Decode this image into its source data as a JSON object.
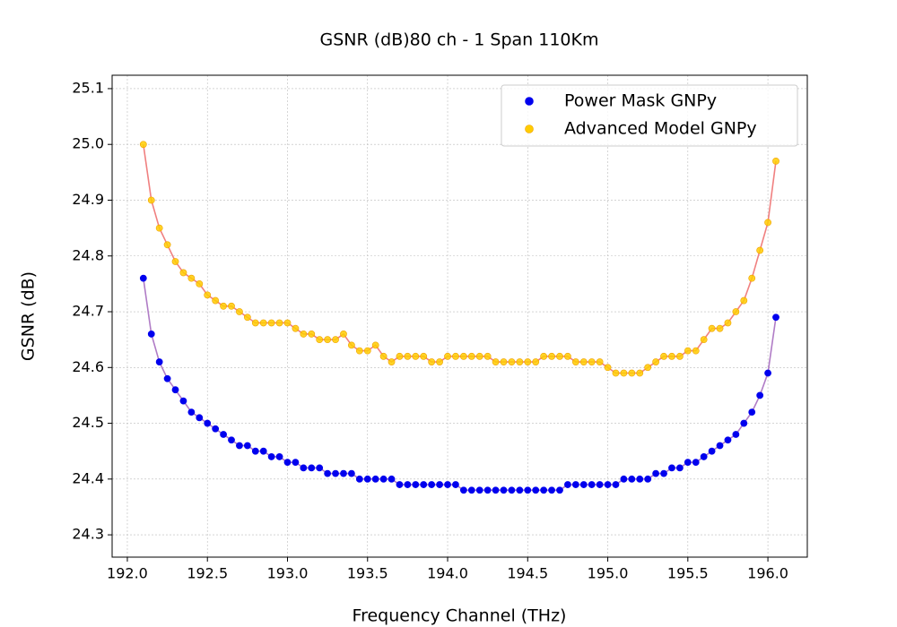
{
  "chart_data": {
    "type": "scatter",
    "title": "GSNR (dB)80 ch - 1 Span 110Km",
    "x_label": "Frequency Channel (THz)",
    "y_label": "GSNR (dB)",
    "x": [
      192.1,
      192.15,
      192.2,
      192.25,
      192.3,
      192.35,
      192.4,
      192.45,
      192.5,
      192.55,
      192.6,
      192.65,
      192.7,
      192.75,
      192.8,
      192.85,
      192.9,
      192.95,
      193.0,
      193.05,
      193.1,
      193.15,
      193.2,
      193.25,
      193.3,
      193.35,
      193.4,
      193.45,
      193.5,
      193.55,
      193.6,
      193.65,
      193.7,
      193.75,
      193.8,
      193.85,
      193.9,
      193.95,
      194.0,
      194.05,
      194.1,
      194.15,
      194.2,
      194.25,
      194.3,
      194.35,
      194.4,
      194.45,
      194.5,
      194.55,
      194.6,
      194.65,
      194.7,
      194.75,
      194.8,
      194.85,
      194.9,
      194.95,
      195.0,
      195.05,
      195.1,
      195.15,
      195.2,
      195.25,
      195.3,
      195.35,
      195.4,
      195.45,
      195.5,
      195.55,
      195.6,
      195.65,
      195.7,
      195.75,
      195.8,
      195.85,
      195.9,
      195.95,
      196.0,
      196.05
    ],
    "series": [
      {
        "name": "Power Mask GNPy",
        "color": "#0000ee",
        "line_color": "#b07cc6",
        "values": [
          24.76,
          24.66,
          24.61,
          24.58,
          24.56,
          24.54,
          24.52,
          24.51,
          24.5,
          24.49,
          24.48,
          24.47,
          24.46,
          24.46,
          24.45,
          24.45,
          24.44,
          24.44,
          24.43,
          24.43,
          24.42,
          24.42,
          24.42,
          24.41,
          24.41,
          24.41,
          24.41,
          24.4,
          24.4,
          24.4,
          24.4,
          24.4,
          24.39,
          24.39,
          24.39,
          24.39,
          24.39,
          24.39,
          24.39,
          24.39,
          24.38,
          24.38,
          24.38,
          24.38,
          24.38,
          24.38,
          24.38,
          24.38,
          24.38,
          24.38,
          24.38,
          24.38,
          24.38,
          24.39,
          24.39,
          24.39,
          24.39,
          24.39,
          24.39,
          24.39,
          24.4,
          24.4,
          24.4,
          24.4,
          24.41,
          24.41,
          24.42,
          24.42,
          24.43,
          24.43,
          24.44,
          24.45,
          24.46,
          24.47,
          24.48,
          24.5,
          24.52,
          24.55,
          24.59,
          24.69
        ]
      },
      {
        "name": "Advanced Model GNPy",
        "color": "#ffcc00",
        "line_color": "#f08080",
        "values": [
          25.0,
          24.9,
          24.85,
          24.82,
          24.79,
          24.77,
          24.76,
          24.75,
          24.73,
          24.72,
          24.71,
          24.71,
          24.7,
          24.69,
          24.68,
          24.68,
          24.68,
          24.68,
          24.68,
          24.67,
          24.66,
          24.66,
          24.65,
          24.65,
          24.65,
          24.66,
          24.64,
          24.63,
          24.63,
          24.64,
          24.62,
          24.61,
          24.62,
          24.62,
          24.62,
          24.62,
          24.61,
          24.61,
          24.62,
          24.62,
          24.62,
          24.62,
          24.62,
          24.62,
          24.61,
          24.61,
          24.61,
          24.61,
          24.61,
          24.61,
          24.62,
          24.62,
          24.62,
          24.62,
          24.61,
          24.61,
          24.61,
          24.61,
          24.6,
          24.59,
          24.59,
          24.59,
          24.59,
          24.6,
          24.61,
          24.62,
          24.62,
          24.62,
          24.63,
          24.63,
          24.65,
          24.67,
          24.67,
          24.68,
          24.7,
          24.72,
          24.76,
          24.81,
          24.86,
          24.97
        ]
      }
    ],
    "xlim": [
      191.905,
      196.246
    ],
    "ylim": [
      24.26,
      25.124
    ],
    "xticks": [
      {
        "value": 192.0,
        "label": "192.0"
      },
      {
        "value": 192.5,
        "label": "192.5"
      },
      {
        "value": 193.0,
        "label": "193.0"
      },
      {
        "value": 193.5,
        "label": "193.5"
      },
      {
        "value": 194.0,
        "label": "194.0"
      },
      {
        "value": 194.5,
        "label": "194.5"
      },
      {
        "value": 195.0,
        "label": "195.0"
      },
      {
        "value": 195.5,
        "label": "195.5"
      },
      {
        "value": 196.0,
        "label": "196.0"
      }
    ],
    "yticks": [
      24.3,
      24.4,
      24.5,
      24.6,
      24.7,
      24.8,
      24.9,
      {
        "value": 25.0,
        "label": "25.0"
      },
      25.1
    ],
    "grid": true,
    "legend": "upper right"
  }
}
